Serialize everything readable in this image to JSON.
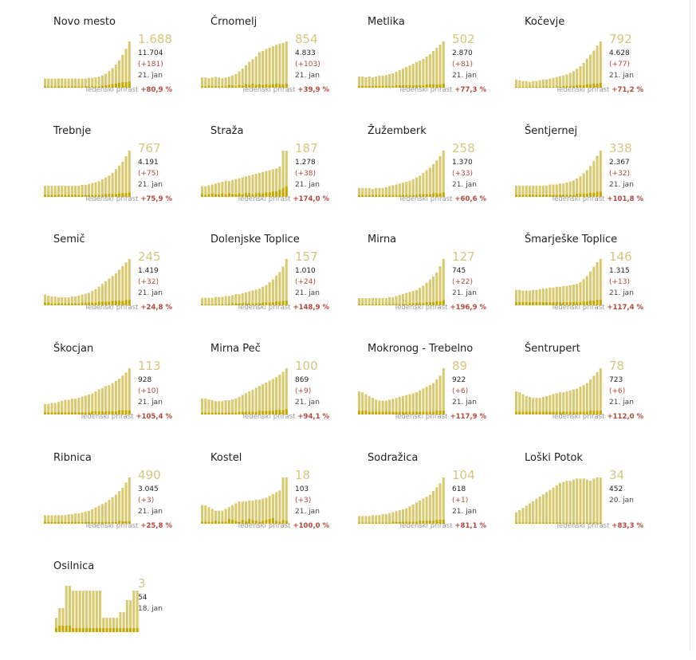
{
  "growth_label": "Tedenski prirast",
  "colors": {
    "bar_light": "#d9c96f",
    "bar_dark": "#c5a800",
    "value": "#d6c67f",
    "growth": "#b4483b"
  },
  "chart_data": [
    {
      "type": "bar",
      "title": "Novo mesto",
      "value": "1.688",
      "total": "11.704",
      "delta": "(+181)",
      "date": "21. jan",
      "growth": "+80,9 %",
      "values": [
        15,
        15,
        15,
        15,
        15,
        15,
        15,
        15,
        15,
        15,
        15,
        15,
        15,
        16,
        16,
        17,
        18,
        20,
        23,
        27,
        32,
        38,
        45,
        54,
        64,
        76
      ],
      "highlight": [
        2,
        2,
        2,
        2,
        2,
        2,
        2,
        2,
        2,
        2,
        2,
        2,
        2,
        2,
        2,
        2,
        2,
        3,
        4,
        5,
        6,
        7,
        8,
        9,
        9,
        10
      ]
    },
    {
      "type": "bar",
      "title": "Črnomelj",
      "value": "854",
      "total": "4.833",
      "delta": "(+103)",
      "date": "21. jan",
      "growth": "+39,9 %",
      "values": [
        15,
        15,
        14,
        15,
        16,
        15,
        14,
        15,
        16,
        18,
        20,
        24,
        28,
        33,
        38,
        42,
        46,
        52,
        54,
        57,
        59,
        61,
        63,
        65,
        66,
        68
      ],
      "highlight": [
        2,
        2,
        3,
        2,
        2,
        2,
        2,
        2,
        4,
        3,
        2,
        4,
        3,
        5,
        4,
        6,
        4,
        5,
        4,
        5,
        4,
        5,
        6,
        5,
        5,
        6
      ]
    },
    {
      "type": "bar",
      "title": "Metlika",
      "value": "502",
      "total": "2.870",
      "delta": "(+81)",
      "date": "21. jan",
      "growth": "+77,3 %",
      "values": [
        14,
        14,
        13,
        14,
        13,
        14,
        15,
        15,
        16,
        17,
        18,
        20,
        22,
        24,
        26,
        28,
        30,
        32,
        34,
        36,
        39,
        42,
        46,
        50,
        54,
        58
      ],
      "highlight": [
        2,
        2,
        2,
        2,
        2,
        2,
        2,
        2,
        2,
        2,
        2,
        3,
        3,
        3,
        3,
        3,
        3,
        3,
        3,
        3,
        4,
        4,
        4,
        4,
        4,
        5
      ]
    },
    {
      "type": "bar",
      "title": "Kočevje",
      "value": "792",
      "total": "4.628",
      "delta": "(+77)",
      "date": "21. jan",
      "growth": "+71,2 %",
      "values": [
        10,
        9,
        8,
        8,
        7,
        8,
        8,
        9,
        10,
        10,
        11,
        12,
        13,
        14,
        15,
        16,
        18,
        20,
        23,
        26,
        30,
        35,
        40,
        45,
        51,
        56
      ],
      "highlight": [
        1,
        1,
        1,
        1,
        1,
        1,
        1,
        1,
        1,
        1,
        1,
        1,
        1,
        1,
        2,
        2,
        2,
        2,
        3,
        3,
        3,
        4,
        4,
        5,
        5,
        6
      ]
    },
    {
      "type": "bar",
      "title": "Trebnje",
      "value": "767",
      "total": "4.191",
      "delta": "(+75)",
      "date": "21. jan",
      "growth": "+75,9 %",
      "values": [
        12,
        12,
        12,
        12,
        12,
        12,
        12,
        12,
        12,
        12,
        12,
        13,
        13,
        14,
        15,
        16,
        17,
        19,
        21,
        23,
        26,
        30,
        34,
        38,
        44,
        50
      ],
      "highlight": [
        2,
        2,
        2,
        2,
        2,
        2,
        2,
        2,
        2,
        2,
        2,
        2,
        2,
        2,
        2,
        2,
        2,
        2,
        3,
        3,
        3,
        3,
        4,
        4,
        4,
        5
      ]
    },
    {
      "type": "bar",
      "title": "Straža",
      "value": "187",
      "total": "1.278",
      "delta": "(+38)",
      "date": "21. jan",
      "growth": "+174,0 %",
      "values": [
        12,
        12,
        13,
        14,
        15,
        16,
        17,
        18,
        18,
        19,
        20,
        21,
        22,
        23,
        24,
        25,
        26,
        27,
        28,
        29,
        30,
        31,
        32,
        34,
        52,
        52
      ],
      "highlight": [
        3,
        2,
        3,
        4,
        3,
        3,
        4,
        3,
        4,
        3,
        3,
        4,
        3,
        4,
        4,
        3,
        4,
        4,
        4,
        5,
        5,
        6,
        6,
        8,
        10,
        12
      ]
    },
    {
      "type": "bar",
      "title": "Žužemberk",
      "value": "258",
      "total": "1.370",
      "delta": "(+33)",
      "date": "21. jan",
      "growth": "+60,6 %",
      "values": [
        10,
        10,
        10,
        10,
        9,
        10,
        10,
        10,
        11,
        12,
        13,
        14,
        15,
        16,
        17,
        18,
        20,
        22,
        24,
        27,
        30,
        33,
        37,
        41,
        46,
        52
      ],
      "highlight": [
        2,
        2,
        2,
        2,
        2,
        2,
        2,
        2,
        2,
        2,
        2,
        2,
        2,
        2,
        2,
        2,
        2,
        2,
        3,
        3,
        3,
        3,
        4,
        4,
        4,
        5
      ]
    },
    {
      "type": "bar",
      "title": "Šentjernej",
      "value": "338",
      "total": "2.367",
      "delta": "(+32)",
      "date": "21. jan",
      "growth": "+101,8 %",
      "values": [
        11,
        11,
        11,
        11,
        11,
        11,
        11,
        11,
        11,
        11,
        12,
        12,
        12,
        13,
        13,
        14,
        15,
        16,
        18,
        20,
        23,
        26,
        30,
        35,
        40,
        45
      ],
      "highlight": [
        2,
        2,
        2,
        2,
        2,
        2,
        2,
        2,
        2,
        2,
        2,
        2,
        2,
        2,
        2,
        2,
        2,
        2,
        3,
        3,
        3,
        3,
        4,
        4,
        5,
        5
      ]
    },
    {
      "type": "bar",
      "title": "Semič",
      "value": "245",
      "total": "1.419",
      "delta": "(+32)",
      "date": "21. jan",
      "growth": "+24,8 %",
      "values": [
        12,
        11,
        10,
        10,
        9,
        9,
        9,
        9,
        10,
        10,
        11,
        12,
        13,
        14,
        16,
        18,
        21,
        24,
        27,
        30,
        33,
        36,
        40,
        44,
        48,
        52
      ],
      "highlight": [
        3,
        3,
        2,
        2,
        2,
        2,
        2,
        2,
        2,
        2,
        2,
        3,
        3,
        3,
        3,
        3,
        4,
        4,
        4,
        4,
        5,
        5,
        5,
        5,
        6,
        6
      ]
    },
    {
      "type": "bar",
      "title": "Dolenjske Toplice",
      "value": "157",
      "total": "1.010",
      "delta": "(+24)",
      "date": "21. jan",
      "growth": "+148,9 %",
      "values": [
        8,
        8,
        8,
        8,
        9,
        9,
        9,
        10,
        10,
        11,
        12,
        12,
        13,
        14,
        15,
        16,
        17,
        18,
        20,
        22,
        25,
        28,
        32,
        36,
        42,
        50
      ],
      "highlight": [
        1,
        1,
        1,
        1,
        1,
        1,
        1,
        1,
        1,
        2,
        2,
        2,
        2,
        2,
        2,
        2,
        2,
        2,
        3,
        3,
        3,
        3,
        4,
        4,
        5,
        5
      ]
    },
    {
      "type": "bar",
      "title": "Mirna",
      "value": "127",
      "total": "745",
      "delta": "(+22)",
      "date": "21. jan",
      "growth": "+196,9 %",
      "values": [
        7,
        7,
        7,
        7,
        7,
        7,
        7,
        7,
        7,
        8,
        8,
        9,
        10,
        11,
        12,
        13,
        14,
        15,
        17,
        19,
        22,
        25,
        28,
        32,
        38,
        45
      ],
      "highlight": [
        1,
        1,
        1,
        1,
        1,
        1,
        1,
        1,
        1,
        1,
        1,
        1,
        1,
        1,
        1,
        2,
        2,
        2,
        2,
        2,
        3,
        3,
        3,
        4,
        4,
        5
      ]
    },
    {
      "type": "bar",
      "title": "Šmarješke Toplice",
      "value": "146",
      "total": "1.315",
      "delta": "(+13)",
      "date": "21. jan",
      "growth": "+117,4 %",
      "values": [
        20,
        20,
        19,
        19,
        19,
        20,
        20,
        21,
        22,
        22,
        23,
        23,
        24,
        24,
        25,
        25,
        26,
        27,
        28,
        30,
        34,
        38,
        44,
        50,
        56,
        60
      ],
      "highlight": [
        4,
        4,
        4,
        4,
        4,
        4,
        4,
        4,
        4,
        4,
        4,
        4,
        4,
        4,
        4,
        4,
        4,
        4,
        4,
        4,
        5,
        5,
        6,
        6,
        7,
        7
      ]
    },
    {
      "type": "bar",
      "title": "Škocjan",
      "value": "113",
      "total": "928",
      "delta": "(+10)",
      "date": "21. jan",
      "growth": "+105,4 %",
      "values": [
        10,
        10,
        11,
        11,
        12,
        13,
        14,
        14,
        15,
        15,
        16,
        17,
        18,
        19,
        20,
        22,
        24,
        25,
        27,
        28,
        30,
        32,
        34,
        37,
        40,
        44
      ],
      "highlight": [
        2,
        2,
        2,
        2,
        2,
        2,
        2,
        2,
        2,
        2,
        2,
        2,
        2,
        2,
        3,
        3,
        3,
        3,
        3,
        3,
        3,
        3,
        4,
        4,
        4,
        4
      ]
    },
    {
      "type": "bar",
      "title": "Mirna Peč",
      "value": "100",
      "total": "869",
      "delta": "(+9)",
      "date": "21. jan",
      "growth": "+94,1 %",
      "values": [
        18,
        18,
        17,
        16,
        15,
        15,
        15,
        16,
        16,
        17,
        18,
        20,
        22,
        24,
        26,
        28,
        30,
        32,
        34,
        36,
        38,
        40,
        42,
        45,
        48,
        52
      ],
      "highlight": [
        2,
        2,
        2,
        2,
        2,
        2,
        2,
        2,
        2,
        2,
        2,
        3,
        3,
        3,
        3,
        3,
        3,
        4,
        4,
        4,
        4,
        4,
        5,
        5,
        5,
        6
      ]
    },
    {
      "type": "bar",
      "title": "Mokronog - Trebelno",
      "value": "89",
      "total": "922",
      "delta": "(+6)",
      "date": "21. jan",
      "growth": "+117,9 %",
      "values": [
        25,
        24,
        22,
        20,
        18,
        16,
        15,
        15,
        15,
        16,
        17,
        18,
        19,
        20,
        21,
        22,
        23,
        24,
        26,
        28,
        30,
        32,
        34,
        38,
        42,
        50
      ],
      "highlight": [
        4,
        4,
        4,
        3,
        3,
        3,
        3,
        3,
        3,
        3,
        3,
        3,
        3,
        3,
        3,
        3,
        3,
        3,
        3,
        3,
        3,
        3,
        3,
        4,
        4,
        4
      ]
    },
    {
      "type": "bar",
      "title": "Šentrupert",
      "value": "78",
      "total": "723",
      "delta": "(+6)",
      "date": "21. jan",
      "growth": "+112,0 %",
      "values": [
        25,
        24,
        22,
        20,
        19,
        18,
        18,
        18,
        19,
        20,
        21,
        22,
        23,
        24,
        24,
        25,
        26,
        27,
        28,
        30,
        32,
        34,
        38,
        42,
        46,
        50
      ],
      "highlight": [
        3,
        3,
        3,
        3,
        3,
        3,
        3,
        3,
        3,
        3,
        3,
        3,
        3,
        3,
        3,
        3,
        3,
        3,
        3,
        3,
        3,
        3,
        4,
        4,
        4,
        4
      ]
    },
    {
      "type": "bar",
      "title": "Ribnica",
      "value": "490",
      "total": "3.045",
      "delta": "(+3)",
      "date": "21. jan",
      "growth": "+25,8 %",
      "values": [
        10,
        10,
        10,
        10,
        10,
        10,
        10,
        11,
        11,
        12,
        12,
        13,
        14,
        15,
        17,
        19,
        21,
        23,
        25,
        28,
        31,
        34,
        38,
        42,
        48,
        54
      ],
      "highlight": [
        2,
        2,
        2,
        2,
        2,
        2,
        2,
        2,
        2,
        2,
        2,
        2,
        2,
        2,
        2,
        2,
        2,
        2,
        2,
        2,
        2,
        2,
        3,
        3,
        3,
        3
      ]
    },
    {
      "type": "bar",
      "title": "Kostel",
      "value": "18",
      "total": "103",
      "delta": "(+3)",
      "date": "21. jan",
      "growth": "+100,0 %",
      "values": [
        20,
        20,
        18,
        16,
        14,
        14,
        14,
        16,
        18,
        20,
        22,
        24,
        24,
        24,
        25,
        25,
        26,
        26,
        27,
        28,
        30,
        32,
        34,
        36,
        50,
        50
      ],
      "highlight": [
        2,
        2,
        2,
        2,
        3,
        2,
        2,
        2,
        5,
        4,
        3,
        2,
        4,
        3,
        5,
        4,
        3,
        2,
        3,
        4,
        5,
        6,
        3,
        2,
        4,
        3
      ]
    },
    {
      "type": "bar",
      "title": "Sodražica",
      "value": "104",
      "total": "618",
      "delta": "(+1)",
      "date": "21. jan",
      "growth": "+81,1 %",
      "values": [
        8,
        8,
        8,
        8,
        9,
        9,
        9,
        10,
        10,
        11,
        12,
        13,
        14,
        15,
        16,
        18,
        20,
        22,
        24,
        26,
        28,
        30,
        34,
        38,
        42,
        48
      ],
      "highlight": [
        1,
        1,
        1,
        1,
        1,
        1,
        1,
        1,
        1,
        1,
        2,
        2,
        2,
        2,
        2,
        2,
        2,
        2,
        3,
        3,
        3,
        3,
        3,
        4,
        4,
        4
      ]
    },
    {
      "type": "bar",
      "title": "Loški Potok",
      "value": "34",
      "total": "452",
      "delta": "",
      "date": "20. jan",
      "growth": "+83,3 %",
      "values": [
        10,
        12,
        14,
        16,
        18,
        20,
        22,
        24,
        26,
        28,
        30,
        32,
        34,
        36,
        37,
        38,
        38,
        39,
        40,
        40,
        40,
        39,
        38,
        40,
        41,
        41
      ],
      "highlight": [
        1,
        1,
        1,
        1,
        1,
        1,
        1,
        1,
        1,
        1,
        1,
        1,
        1,
        1,
        1,
        1,
        1,
        1,
        1,
        1,
        1,
        1,
        1,
        1,
        1,
        1
      ]
    },
    {
      "type": "bar",
      "title": "Osilnica",
      "value": "3",
      "total": "54",
      "delta": "",
      "date": "18. jan",
      "growth": "",
      "values": [
        18,
        30,
        30,
        58,
        58,
        52,
        52,
        52,
        52,
        52,
        52,
        52,
        52,
        52,
        18,
        18,
        18,
        18,
        18,
        25,
        25,
        40,
        40,
        52,
        52,
        52
      ],
      "highlight": [
        5,
        8,
        8,
        8,
        8,
        5,
        5,
        5,
        5,
        5,
        5,
        5,
        5,
        5,
        5,
        5,
        5,
        5,
        5,
        5,
        5,
        5,
        5,
        5,
        5,
        5
      ]
    }
  ]
}
